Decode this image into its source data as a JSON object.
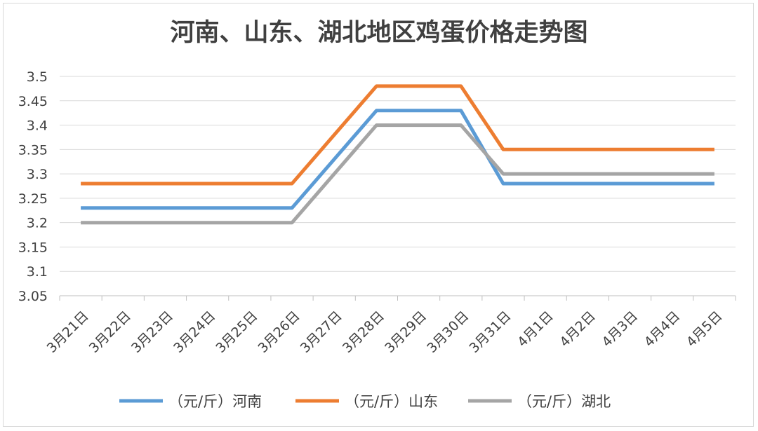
{
  "chart_data": {
    "type": "line",
    "title": "河南、山东、湖北地区鸡蛋价格走势图",
    "xlabel": "",
    "ylabel": "",
    "categories": [
      "3月21日",
      "3月22日",
      "3月23日",
      "3月24日",
      "3月25日",
      "3月26日",
      "3月27日",
      "3月28日",
      "3月29日",
      "3月30日",
      "3月31日",
      "4月1日",
      "4月2日",
      "4月3日",
      "4月4日",
      "4月5日"
    ],
    "y_ticks": [
      "3.05",
      "3.1",
      "3.15",
      "3.2",
      "3.25",
      "3.3",
      "3.35",
      "3.4",
      "3.45",
      "3.5"
    ],
    "ylim": [
      3.05,
      3.5
    ],
    "grid": true,
    "legend_position": "bottom",
    "series": [
      {
        "name": "（元/斤）河南",
        "color": "#5B9BD5",
        "values": [
          3.23,
          3.23,
          3.23,
          3.23,
          3.23,
          3.23,
          null,
          3.43,
          3.43,
          3.43,
          3.28,
          3.28,
          3.28,
          3.28,
          3.28,
          3.28
        ]
      },
      {
        "name": "（元/斤）山东",
        "color": "#ED7D31",
        "values": [
          3.28,
          3.28,
          3.28,
          3.28,
          3.28,
          3.28,
          null,
          3.48,
          3.48,
          3.48,
          3.35,
          3.35,
          3.35,
          3.35,
          3.35,
          3.35
        ]
      },
      {
        "name": "（元/斤）湖北",
        "color": "#A5A5A5",
        "values": [
          3.2,
          3.2,
          3.2,
          3.2,
          3.2,
          3.2,
          null,
          3.4,
          3.4,
          3.4,
          3.3,
          3.3,
          3.3,
          3.3,
          3.3,
          3.3
        ]
      }
    ]
  }
}
